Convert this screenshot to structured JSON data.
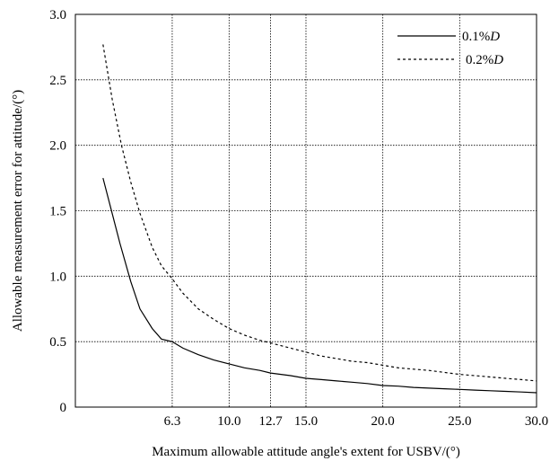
{
  "chart_data": {
    "type": "line",
    "xlabel": "Maximum allowable attitude angle's extent for USBV/(°)",
    "ylabel": "Allowable measurement error for attitude/(°)",
    "xlim": [
      0.0,
      30.0
    ],
    "ylim": [
      0.0,
      3.0
    ],
    "x_ticks": [
      {
        "value": 6.3,
        "label": "6.3"
      },
      {
        "value": 10.0,
        "label": "10.0"
      },
      {
        "value": 12.7,
        "label": "12.7"
      },
      {
        "value": 15.0,
        "label": "15.0"
      },
      {
        "value": 20.0,
        "label": "20.0"
      },
      {
        "value": 25.0,
        "label": "25.0"
      },
      {
        "value": 30.0,
        "label": "30.0"
      }
    ],
    "y_ticks": [
      {
        "value": 0.0,
        "label": "0"
      },
      {
        "value": 0.5,
        "label": "0.5"
      },
      {
        "value": 1.0,
        "label": "1.0"
      },
      {
        "value": 1.5,
        "label": "1.5"
      },
      {
        "value": 2.0,
        "label": "2.0"
      },
      {
        "value": 2.5,
        "label": "2.5"
      },
      {
        "value": 3.0,
        "label": "3.0"
      }
    ],
    "grid": true,
    "grid_style": "dotted",
    "legend_position": "top-right",
    "series": [
      {
        "name_prefix": "0.1%",
        "name_italic": "D",
        "style": "solid",
        "color": "#000000",
        "x": [
          1.8,
          2.9,
          3.6,
          4.2,
          5.0,
          5.6,
          6.3,
          7.0,
          8.0,
          9.0,
          10.0,
          11.0,
          12.0,
          12.7,
          14.0,
          15.0,
          16.0,
          17.0,
          18.0,
          19.0,
          20.0,
          21.0,
          22.0,
          23.0,
          24.0,
          25.0,
          26.0,
          27.0,
          28.0,
          29.0,
          30.0
        ],
        "y": [
          1.75,
          1.25,
          0.96,
          0.75,
          0.6,
          0.52,
          0.5,
          0.45,
          0.4,
          0.36,
          0.33,
          0.3,
          0.28,
          0.26,
          0.24,
          0.22,
          0.21,
          0.2,
          0.19,
          0.18,
          0.165,
          0.16,
          0.15,
          0.145,
          0.14,
          0.135,
          0.13,
          0.125,
          0.12,
          0.115,
          0.11
        ]
      },
      {
        "name_prefix": "0.2%",
        "name_italic": "D",
        "style": "dotted",
        "color": "#000000",
        "x": [
          1.8,
          2.4,
          3.0,
          3.6,
          4.2,
          5.0,
          5.6,
          6.3,
          7.0,
          8.0,
          9.0,
          10.0,
          11.0,
          12.0,
          12.7,
          14.0,
          15.0,
          16.0,
          17.0,
          18.0,
          19.0,
          20.0,
          21.0,
          22.0,
          23.0,
          24.0,
          25.0,
          26.0,
          27.0,
          28.0,
          29.0,
          30.0
        ],
        "y": [
          2.77,
          2.35,
          2.0,
          1.72,
          1.48,
          1.22,
          1.08,
          0.98,
          0.87,
          0.75,
          0.67,
          0.6,
          0.55,
          0.51,
          0.49,
          0.45,
          0.42,
          0.39,
          0.37,
          0.35,
          0.34,
          0.32,
          0.3,
          0.29,
          0.28,
          0.265,
          0.25,
          0.24,
          0.23,
          0.22,
          0.21,
          0.2
        ]
      }
    ]
  }
}
